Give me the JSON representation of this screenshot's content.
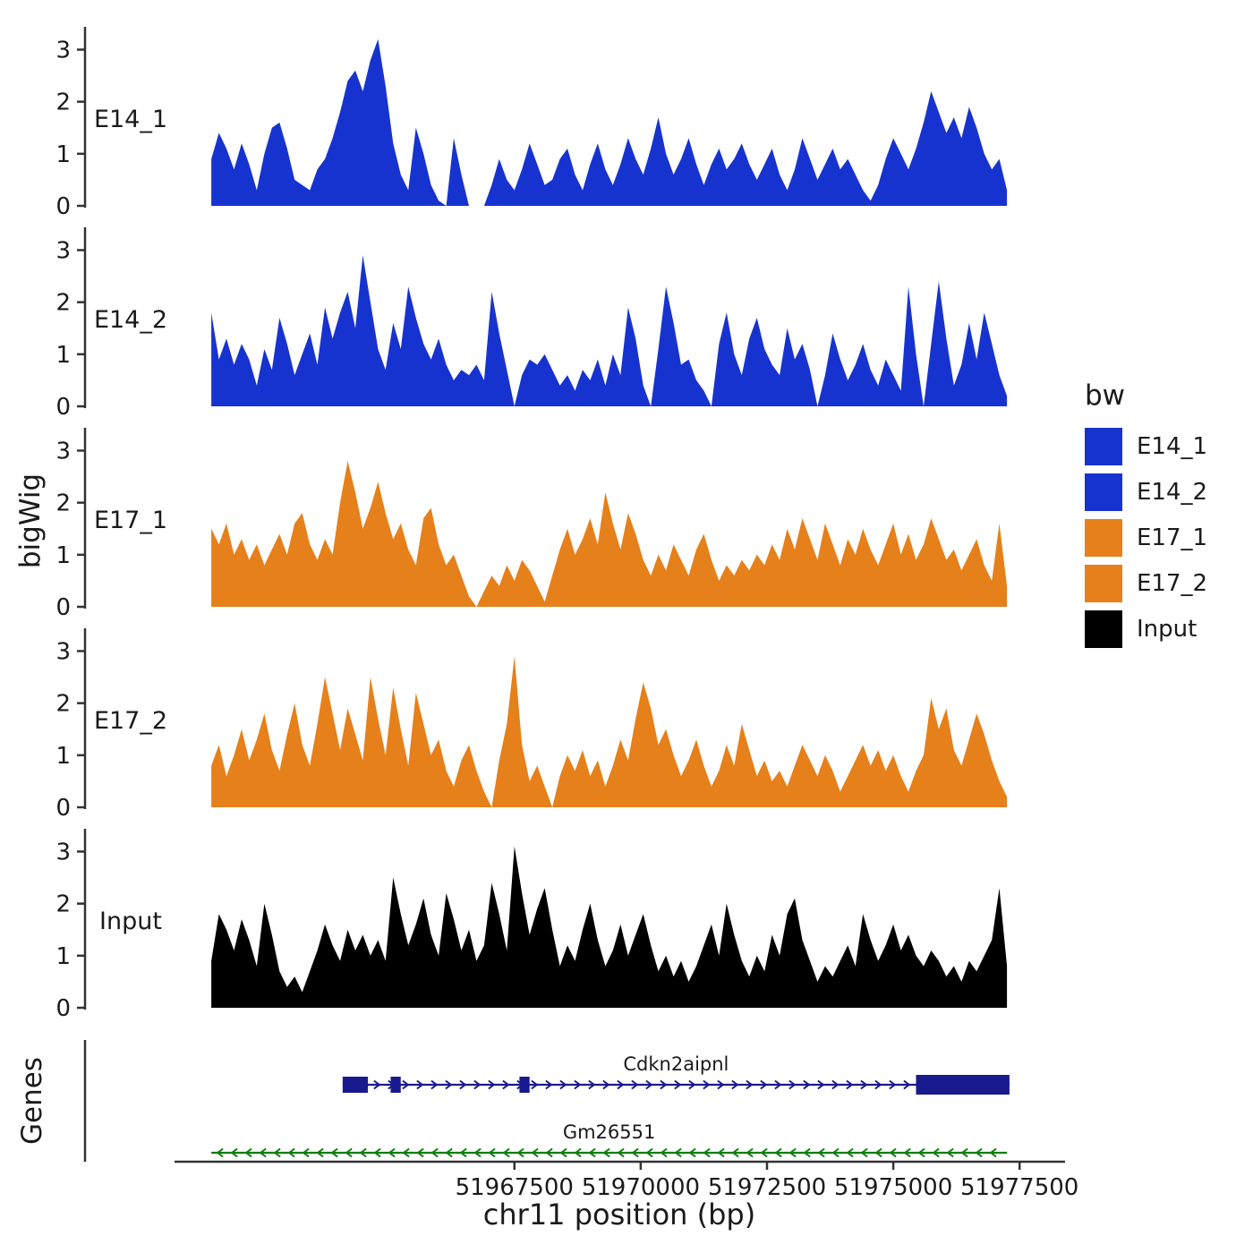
{
  "chart_data": {
    "type": "area",
    "title": "",
    "ylabel": "bigWig",
    "xlabel": "chr11 position (bp)",
    "x_domain": [
      51959000,
      51978400
    ],
    "x_ticks": [
      51967500,
      51970000,
      51972500,
      51975000,
      51977500
    ],
    "y_ticks": [
      0,
      1,
      2,
      3
    ],
    "ylim": [
      0,
      3.3
    ],
    "bin_start": 51961500,
    "bin_step": 150,
    "tracks": [
      {
        "name": "E14_1",
        "color": "#1733CF",
        "values": [
          0.9,
          1.4,
          1.1,
          0.7,
          1.2,
          0.8,
          0.3,
          1.0,
          1.5,
          1.6,
          1.1,
          0.5,
          0.4,
          0.3,
          0.7,
          0.9,
          1.3,
          1.8,
          2.4,
          2.6,
          2.2,
          2.8,
          3.2,
          2.3,
          1.2,
          0.6,
          0.3,
          1.5,
          1.0,
          0.4,
          0.1,
          0.0,
          1.3,
          0.6,
          0.0,
          0.0,
          0.0,
          0.4,
          0.9,
          0.5,
          0.3,
          0.7,
          1.2,
          0.8,
          0.4,
          0.5,
          0.9,
          1.1,
          0.6,
          0.3,
          0.8,
          1.2,
          0.7,
          0.4,
          0.8,
          1.3,
          0.9,
          0.6,
          1.1,
          1.7,
          1.0,
          0.6,
          0.9,
          1.3,
          0.8,
          0.4,
          0.8,
          1.1,
          0.7,
          0.9,
          1.2,
          0.8,
          0.5,
          0.8,
          1.1,
          0.6,
          0.3,
          0.7,
          1.3,
          0.9,
          0.5,
          0.8,
          1.1,
          0.7,
          0.9,
          0.6,
          0.3,
          0.1,
          0.4,
          0.9,
          1.3,
          1.0,
          0.7,
          1.1,
          1.6,
          2.2,
          1.8,
          1.4,
          1.7,
          1.3,
          1.9,
          1.5,
          1.0,
          0.7,
          0.9,
          0.3
        ]
      },
      {
        "name": "E14_2",
        "color": "#1733CF",
        "values": [
          1.8,
          0.9,
          1.3,
          0.8,
          1.2,
          0.9,
          0.4,
          1.1,
          0.7,
          1.7,
          1.2,
          0.6,
          1.0,
          1.4,
          0.8,
          1.9,
          1.3,
          1.8,
          2.2,
          1.5,
          2.9,
          2.0,
          1.1,
          0.7,
          1.6,
          1.1,
          2.3,
          1.7,
          1.2,
          0.9,
          1.3,
          0.8,
          0.5,
          0.7,
          0.6,
          0.8,
          0.5,
          2.2,
          1.4,
          0.7,
          0.0,
          0.6,
          0.9,
          0.8,
          1.0,
          0.7,
          0.4,
          0.6,
          0.3,
          0.7,
          0.5,
          0.9,
          0.4,
          1.0,
          0.6,
          1.9,
          1.3,
          0.4,
          0.0,
          1.1,
          2.3,
          1.6,
          0.8,
          0.9,
          0.5,
          0.3,
          0.0,
          1.2,
          1.8,
          1.0,
          0.6,
          1.3,
          1.7,
          1.1,
          0.8,
          0.6,
          1.5,
          0.9,
          1.2,
          0.7,
          0.0,
          0.6,
          1.4,
          0.9,
          0.5,
          0.8,
          1.2,
          0.7,
          0.4,
          0.9,
          0.6,
          0.3,
          2.3,
          1.0,
          0.0,
          1.2,
          2.4,
          1.3,
          0.4,
          0.8,
          1.6,
          0.9,
          1.8,
          1.2,
          0.6,
          0.2
        ]
      },
      {
        "name": "E17_1",
        "color": "#E6801A",
        "values": [
          1.5,
          1.2,
          1.6,
          1.0,
          1.3,
          0.9,
          1.2,
          0.8,
          1.1,
          1.4,
          1.0,
          1.6,
          1.8,
          1.2,
          0.9,
          1.3,
          1.0,
          2.0,
          2.8,
          2.2,
          1.5,
          1.9,
          2.4,
          1.8,
          1.3,
          1.6,
          1.1,
          0.8,
          1.7,
          1.9,
          1.2,
          0.8,
          1.0,
          0.6,
          0.2,
          0.0,
          0.3,
          0.6,
          0.4,
          0.8,
          0.5,
          0.9,
          0.7,
          0.4,
          0.1,
          0.6,
          1.1,
          1.5,
          1.0,
          1.3,
          1.7,
          1.2,
          2.2,
          1.6,
          1.1,
          1.8,
          1.4,
          0.9,
          0.6,
          1.0,
          0.7,
          1.2,
          0.9,
          0.6,
          1.1,
          1.4,
          0.9,
          0.5,
          0.8,
          0.6,
          0.9,
          0.7,
          1.0,
          0.8,
          1.2,
          0.9,
          1.5,
          1.1,
          1.7,
          1.3,
          0.9,
          1.6,
          1.2,
          0.8,
          1.3,
          1.0,
          1.5,
          1.1,
          0.8,
          1.2,
          1.6,
          1.0,
          1.4,
          0.9,
          1.2,
          1.7,
          1.3,
          0.9,
          1.1,
          0.7,
          1.0,
          1.3,
          0.8,
          0.5,
          1.6,
          0.4
        ]
      },
      {
        "name": "E17_2",
        "color": "#E6801A",
        "values": [
          0.8,
          1.2,
          0.6,
          1.0,
          1.5,
          0.9,
          1.3,
          1.8,
          1.1,
          0.7,
          1.4,
          2.0,
          1.2,
          0.8,
          1.6,
          2.5,
          1.8,
          1.1,
          1.9,
          1.4,
          0.9,
          2.5,
          1.7,
          1.0,
          2.3,
          1.5,
          0.8,
          2.2,
          1.6,
          1.0,
          1.3,
          0.7,
          0.4,
          0.9,
          1.2,
          0.7,
          0.3,
          0.0,
          0.9,
          1.6,
          2.9,
          1.2,
          0.5,
          0.8,
          0.4,
          0.0,
          0.6,
          1.0,
          0.7,
          1.1,
          0.6,
          0.9,
          0.4,
          0.8,
          1.3,
          0.9,
          1.7,
          2.4,
          1.9,
          1.2,
          1.5,
          1.0,
          0.6,
          0.9,
          1.3,
          0.8,
          0.4,
          0.7,
          1.2,
          0.8,
          1.6,
          1.1,
          0.6,
          0.9,
          0.5,
          0.7,
          0.4,
          0.8,
          1.2,
          0.9,
          0.6,
          1.0,
          0.7,
          0.3,
          0.6,
          0.9,
          1.2,
          0.8,
          1.1,
          0.7,
          1.0,
          0.6,
          0.3,
          0.7,
          1.0,
          2.1,
          1.5,
          1.9,
          1.1,
          0.8,
          1.3,
          1.8,
          1.4,
          0.9,
          0.5,
          0.2
        ]
      },
      {
        "name": "Input",
        "color": "#000000",
        "values": [
          0.9,
          1.8,
          1.5,
          1.1,
          1.7,
          1.3,
          0.8,
          2.0,
          1.4,
          0.7,
          0.4,
          0.6,
          0.3,
          0.7,
          1.1,
          1.6,
          1.2,
          0.9,
          1.5,
          1.1,
          1.4,
          1.0,
          1.3,
          0.9,
          2.5,
          1.8,
          1.2,
          1.6,
          2.1,
          1.4,
          1.0,
          2.2,
          1.7,
          1.1,
          1.5,
          0.9,
          1.2,
          2.4,
          1.8,
          1.1,
          3.1,
          2.2,
          1.4,
          1.9,
          2.3,
          1.5,
          0.8,
          1.2,
          0.9,
          1.5,
          2.0,
          1.3,
          0.8,
          1.1,
          1.6,
          1.0,
          1.4,
          1.8,
          1.2,
          0.7,
          1.0,
          0.6,
          0.9,
          0.5,
          0.8,
          1.2,
          1.6,
          1.0,
          2.0,
          1.4,
          0.9,
          0.6,
          1.0,
          0.7,
          1.4,
          1.0,
          1.8,
          2.1,
          1.3,
          0.9,
          0.5,
          0.8,
          0.6,
          0.9,
          1.2,
          0.8,
          1.8,
          1.3,
          0.9,
          1.2,
          1.6,
          1.1,
          1.4,
          1.0,
          0.8,
          1.1,
          0.9,
          0.6,
          0.8,
          0.5,
          0.9,
          0.7,
          1.0,
          1.3,
          2.3,
          0.8
        ]
      }
    ],
    "genes_panel": {
      "label": "Genes",
      "genes": [
        {
          "name": "Cdkn2aipnl",
          "color": "#1A1A8F",
          "strand": "+",
          "start": 51964100,
          "end": 51977300,
          "exons": [
            [
              51964100,
              51964600
            ],
            [
              51965050,
              51965250
            ],
            [
              51967600,
              51967800
            ],
            [
              51975450,
              51977300
            ]
          ]
        },
        {
          "name": "Gm26551",
          "color": "#0E7D0E",
          "strand": "-",
          "start": 51961500,
          "end": 51977250,
          "exons": []
        }
      ]
    }
  },
  "legend": {
    "title": "bw",
    "items": [
      {
        "label": "E14_1",
        "color": "#1733CF"
      },
      {
        "label": "E14_2",
        "color": "#1733CF"
      },
      {
        "label": "E17_1",
        "color": "#E6801A"
      },
      {
        "label": "E17_2",
        "color": "#E6801A"
      },
      {
        "label": "Input",
        "color": "#000000"
      }
    ]
  }
}
